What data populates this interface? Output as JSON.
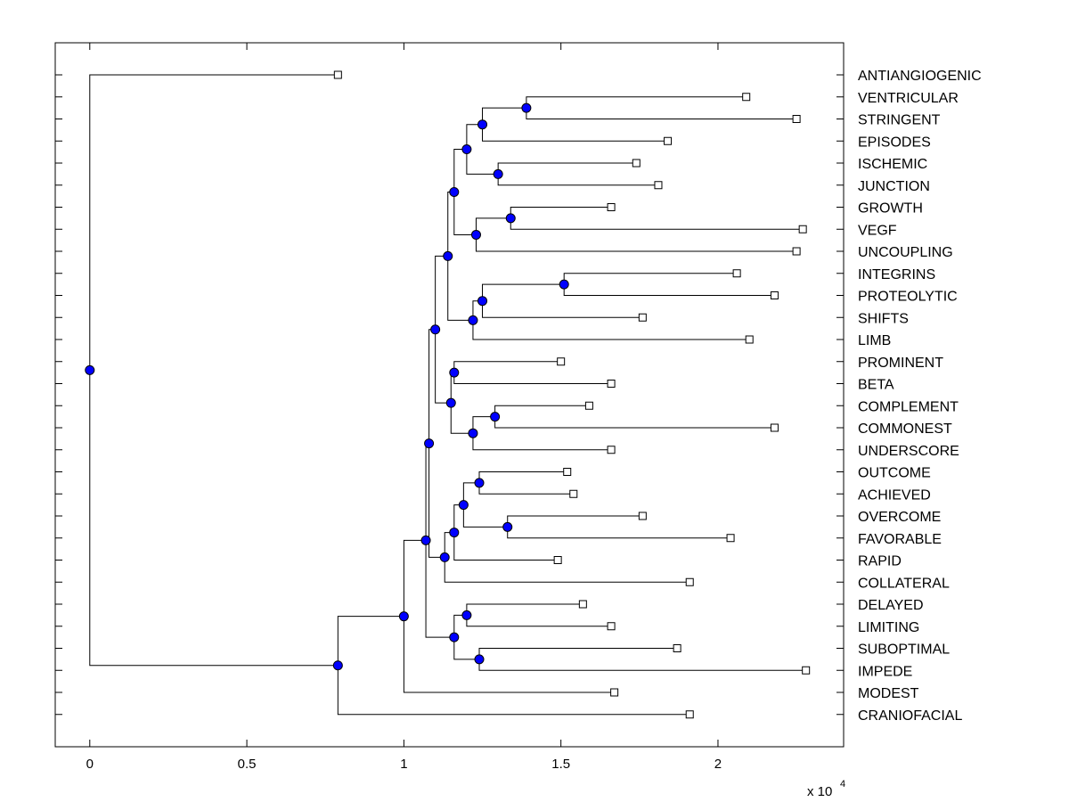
{
  "chart_data": {
    "type": "dendrogram",
    "title": "",
    "xlabel": "",
    "ylabel": "",
    "x_scale_label": "x 10",
    "x_scale_exponent": "4",
    "xlim": [
      -0.11,
      2.4
    ],
    "xticks": [
      {
        "value": 0,
        "label": "0"
      },
      {
        "value": 0.5,
        "label": "0.5"
      },
      {
        "value": 1,
        "label": "1"
      },
      {
        "value": 1.5,
        "label": "1.5"
      },
      {
        "value": 2,
        "label": "2"
      }
    ],
    "colors": {
      "node": "#0000ff",
      "line": "#000000",
      "leaf_fill": "#ffffff"
    },
    "leaves": [
      {
        "label": "ANTIANGIOGENIC",
        "x": 0.79
      },
      {
        "label": "VENTRICULAR",
        "x": 2.09
      },
      {
        "label": "STRINGENT",
        "x": 2.25
      },
      {
        "label": "EPISODES",
        "x": 1.84
      },
      {
        "label": "ISCHEMIC",
        "x": 1.74
      },
      {
        "label": "JUNCTION",
        "x": 1.81
      },
      {
        "label": "GROWTH",
        "x": 1.66
      },
      {
        "label": "VEGF",
        "x": 2.27
      },
      {
        "label": "UNCOUPLING",
        "x": 2.25
      },
      {
        "label": "INTEGRINS",
        "x": 2.06
      },
      {
        "label": "PROTEOLYTIC",
        "x": 2.18
      },
      {
        "label": "SHIFTS",
        "x": 1.76
      },
      {
        "label": "LIMB",
        "x": 2.1
      },
      {
        "label": "PROMINENT",
        "x": 1.5
      },
      {
        "label": "BETA",
        "x": 1.66
      },
      {
        "label": "COMPLEMENT",
        "x": 1.59
      },
      {
        "label": "COMMONEST",
        "x": 2.18
      },
      {
        "label": "UNDERSCORE",
        "x": 1.66
      },
      {
        "label": "OUTCOME",
        "x": 1.52
      },
      {
        "label": "ACHIEVED",
        "x": 1.54
      },
      {
        "label": "OVERCOME",
        "x": 1.76
      },
      {
        "label": "FAVORABLE",
        "x": 2.04
      },
      {
        "label": "RAPID",
        "x": 1.49
      },
      {
        "label": "COLLATERAL",
        "x": 1.91
      },
      {
        "label": "DELAYED",
        "x": 1.57
      },
      {
        "label": "LIMITING",
        "x": 1.66
      },
      {
        "label": "SUBOPTIMAL",
        "x": 1.87
      },
      {
        "label": "IMPEDE",
        "x": 2.28
      },
      {
        "label": "MODEST",
        "x": 1.67
      },
      {
        "label": "CRANIOFACIAL",
        "x": 1.91
      }
    ],
    "merges": [
      {
        "x": 1.39,
        "children": [
          "L1",
          "L2"
        ]
      },
      {
        "x": 1.25,
        "children": [
          "M0",
          "L3"
        ]
      },
      {
        "x": 1.3,
        "children": [
          "L4",
          "L5"
        ]
      },
      {
        "x": 1.2,
        "children": [
          "M1",
          "M2"
        ]
      },
      {
        "x": 1.34,
        "children": [
          "L6",
          "L7"
        ]
      },
      {
        "x": 1.23,
        "children": [
          "M4",
          "L8"
        ]
      },
      {
        "x": 1.16,
        "children": [
          "M3",
          "M5"
        ]
      },
      {
        "x": 1.51,
        "children": [
          "L9",
          "L10"
        ]
      },
      {
        "x": 1.25,
        "children": [
          "M7",
          "L11"
        ]
      },
      {
        "x": 1.22,
        "children": [
          "M8",
          "L12"
        ]
      },
      {
        "x": 1.14,
        "children": [
          "M6",
          "M9"
        ]
      },
      {
        "x": 1.16,
        "children": [
          "L13",
          "L14"
        ]
      },
      {
        "x": 1.29,
        "children": [
          "L15",
          "L16"
        ]
      },
      {
        "x": 1.22,
        "children": [
          "M12",
          "L17"
        ]
      },
      {
        "x": 1.15,
        "children": [
          "M11",
          "M13"
        ]
      },
      {
        "x": 1.1,
        "children": [
          "M10",
          "M14"
        ]
      },
      {
        "x": 1.24,
        "children": [
          "L18",
          "L19"
        ]
      },
      {
        "x": 1.33,
        "children": [
          "L20",
          "L21"
        ]
      },
      {
        "x": 1.19,
        "children": [
          "M16",
          "M17"
        ]
      },
      {
        "x": 1.16,
        "children": [
          "M18",
          "L22"
        ]
      },
      {
        "x": 1.13,
        "children": [
          "M19",
          "L23"
        ]
      },
      {
        "x": 1.08,
        "children": [
          "M15",
          "M20"
        ]
      },
      {
        "x": 1.2,
        "children": [
          "L24",
          "L25"
        ]
      },
      {
        "x": 1.24,
        "children": [
          "L26",
          "L27"
        ]
      },
      {
        "x": 1.16,
        "children": [
          "M22",
          "M23"
        ]
      },
      {
        "x": 1.07,
        "children": [
          "M21",
          "M24"
        ]
      },
      {
        "x": 1.0,
        "children": [
          "M25",
          "L28"
        ]
      },
      {
        "x": 0.79,
        "children": [
          "M26",
          "L29"
        ]
      },
      {
        "x": 0.0,
        "children": [
          "L0",
          "M27"
        ]
      }
    ]
  }
}
